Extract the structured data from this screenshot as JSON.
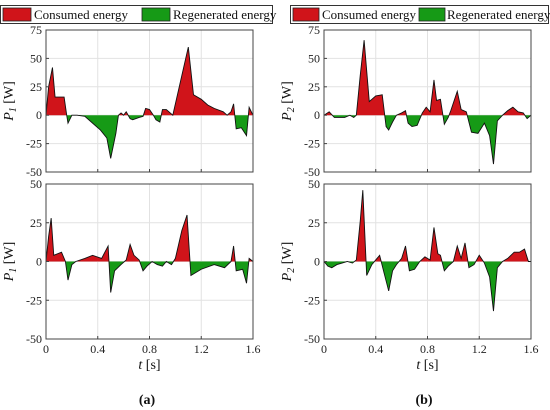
{
  "colors": {
    "consumed": "#d0141a",
    "regenerated": "#169a16",
    "grid": "#e2e2e2",
    "frame": "#444444"
  },
  "legend": {
    "consumed": "Consumed energy",
    "regenerated": "Regenerated energy"
  },
  "panel_labels": {
    "a": "(a)",
    "b": "(b)"
  },
  "chart_data": [
    {
      "type": "area",
      "ylabel_symbol": "P",
      "ylabel_sub": "1",
      "ylabel_unit": "[W]",
      "xlabel": "",
      "xlim": [
        0,
        1.6
      ],
      "ylim": [
        -50,
        75
      ],
      "grid": true,
      "legend": "top",
      "yticks": [
        -50,
        -25,
        0,
        25,
        50,
        75
      ],
      "xticks": [
        0,
        0.4,
        0.8,
        1.2,
        1.6
      ],
      "xtick_labels": [
        "",
        "",
        "",
        "",
        ""
      ],
      "series": [
        {
          "points": [
            [
              0,
              0
            ],
            [
              0.02,
              25
            ],
            [
              0.05,
              42
            ],
            [
              0.07,
              16
            ],
            [
              0.14,
              16
            ],
            [
              0.16,
              0
            ],
            [
              0.17,
              -7
            ],
            [
              0.2,
              0
            ],
            [
              0.24,
              0
            ],
            [
              0.3,
              -1
            ],
            [
              0.36,
              -7
            ],
            [
              0.42,
              -13
            ],
            [
              0.47,
              -20
            ],
            [
              0.5,
              -38
            ],
            [
              0.54,
              -16
            ],
            [
              0.56,
              0
            ],
            [
              0.58,
              2
            ],
            [
              0.6,
              0
            ],
            [
              0.62,
              3
            ],
            [
              0.65,
              -3
            ],
            [
              0.67,
              -4
            ],
            [
              0.72,
              -2
            ],
            [
              0.75,
              -1
            ],
            [
              0.77,
              6
            ],
            [
              0.8,
              5
            ],
            [
              0.83,
              0
            ],
            [
              0.85,
              -4
            ],
            [
              0.88,
              -6
            ],
            [
              0.9,
              5
            ],
            [
              0.93,
              5
            ],
            [
              0.98,
              0
            ],
            [
              1.05,
              35
            ],
            [
              1.1,
              60
            ],
            [
              1.14,
              18
            ],
            [
              1.2,
              14
            ],
            [
              1.25,
              9
            ],
            [
              1.3,
              6
            ],
            [
              1.37,
              3
            ],
            [
              1.4,
              0
            ],
            [
              1.43,
              3
            ],
            [
              1.45,
              10
            ],
            [
              1.47,
              -12
            ],
            [
              1.51,
              -11
            ],
            [
              1.55,
              -18
            ],
            [
              1.57,
              7
            ],
            [
              1.6,
              0
            ]
          ]
        }
      ]
    },
    {
      "type": "area",
      "ylabel_symbol": "P",
      "ylabel_sub": "2",
      "ylabel_unit": "[W]",
      "xlabel": "",
      "xlim": [
        0,
        1.6
      ],
      "ylim": [
        -50,
        75
      ],
      "grid": true,
      "legend": "top",
      "yticks": [
        -50,
        -25,
        0,
        25,
        50,
        75
      ],
      "xticks": [
        0,
        0.4,
        0.8,
        1.2,
        1.6
      ],
      "xtick_labels": [
        "",
        "",
        "",
        "",
        ""
      ],
      "series": [
        {
          "points": [
            [
              0,
              0
            ],
            [
              0.04,
              3
            ],
            [
              0.08,
              -2
            ],
            [
              0.12,
              -2
            ],
            [
              0.16,
              -2
            ],
            [
              0.2,
              0
            ],
            [
              0.23,
              -2
            ],
            [
              0.25,
              0
            ],
            [
              0.28,
              35
            ],
            [
              0.31,
              66
            ],
            [
              0.35,
              12
            ],
            [
              0.4,
              17
            ],
            [
              0.45,
              18
            ],
            [
              0.48,
              -10
            ],
            [
              0.5,
              -13
            ],
            [
              0.53,
              -6
            ],
            [
              0.56,
              0
            ],
            [
              0.6,
              2
            ],
            [
              0.63,
              4
            ],
            [
              0.65,
              -7
            ],
            [
              0.68,
              -10
            ],
            [
              0.72,
              -9
            ],
            [
              0.76,
              2
            ],
            [
              0.79,
              7
            ],
            [
              0.82,
              3
            ],
            [
              0.85,
              31
            ],
            [
              0.87,
              13
            ],
            [
              0.9,
              14
            ],
            [
              0.93,
              -8
            ],
            [
              0.96,
              -2
            ],
            [
              0.98,
              4
            ],
            [
              1.03,
              21
            ],
            [
              1.06,
              5
            ],
            [
              1.1,
              3
            ],
            [
              1.14,
              -15
            ],
            [
              1.19,
              -16
            ],
            [
              1.24,
              -7
            ],
            [
              1.28,
              -18
            ],
            [
              1.31,
              -43
            ],
            [
              1.34,
              -5
            ],
            [
              1.38,
              0
            ],
            [
              1.42,
              4
            ],
            [
              1.46,
              7
            ],
            [
              1.5,
              3
            ],
            [
              1.54,
              2
            ],
            [
              1.57,
              -3
            ],
            [
              1.6,
              0
            ]
          ]
        }
      ]
    },
    {
      "type": "area",
      "ylabel_symbol": "P",
      "ylabel_sub": "1",
      "ylabel_unit": "[W]",
      "xlabel": "t [s]",
      "xlim": [
        0,
        1.6
      ],
      "ylim": [
        -50,
        50
      ],
      "grid": true,
      "yticks": [
        -50,
        -25,
        0,
        25,
        50
      ],
      "xticks": [
        0,
        0.4,
        0.8,
        1.2,
        1.6
      ],
      "xtick_labels": [
        "0",
        "0.4",
        "0.8",
        "1.2",
        "1.6"
      ],
      "series": [
        {
          "points": [
            [
              0,
              0
            ],
            [
              0.02,
              16
            ],
            [
              0.04,
              28
            ],
            [
              0.06,
              4
            ],
            [
              0.12,
              6
            ],
            [
              0.15,
              0
            ],
            [
              0.17,
              -12
            ],
            [
              0.2,
              -2
            ],
            [
              0.23,
              0
            ],
            [
              0.3,
              2
            ],
            [
              0.36,
              4
            ],
            [
              0.43,
              2
            ],
            [
              0.48,
              10
            ],
            [
              0.5,
              -20
            ],
            [
              0.53,
              -6
            ],
            [
              0.58,
              -2
            ],
            [
              0.62,
              1
            ],
            [
              0.65,
              11
            ],
            [
              0.68,
              4
            ],
            [
              0.72,
              1
            ],
            [
              0.75,
              -6
            ],
            [
              0.78,
              -3
            ],
            [
              0.82,
              0
            ],
            [
              0.86,
              -2
            ],
            [
              0.9,
              -3
            ],
            [
              0.93,
              0
            ],
            [
              0.97,
              -2
            ],
            [
              1.0,
              2
            ],
            [
              1.05,
              20
            ],
            [
              1.09,
              30
            ],
            [
              1.12,
              -9
            ],
            [
              1.2,
              -5
            ],
            [
              1.3,
              -2
            ],
            [
              1.38,
              -4
            ],
            [
              1.43,
              0
            ],
            [
              1.45,
              10
            ],
            [
              1.47,
              -6
            ],
            [
              1.52,
              -5
            ],
            [
              1.55,
              -14
            ],
            [
              1.57,
              2
            ],
            [
              1.6,
              0
            ]
          ]
        }
      ]
    },
    {
      "type": "area",
      "ylabel_symbol": "P",
      "ylabel_sub": "2",
      "ylabel_unit": "[W]",
      "xlabel": "t [s]",
      "xlim": [
        0,
        1.6
      ],
      "ylim": [
        -50,
        50
      ],
      "grid": true,
      "yticks": [
        -50,
        -25,
        0,
        25,
        50
      ],
      "xticks": [
        0,
        0.4,
        0.8,
        1.2,
        1.6
      ],
      "xtick_labels": [
        "0",
        "0.4",
        "0.8",
        "1.2",
        "1.6"
      ],
      "series": [
        {
          "points": [
            [
              0,
              0
            ],
            [
              0.03,
              -3
            ],
            [
              0.06,
              -4
            ],
            [
              0.1,
              -2
            ],
            [
              0.14,
              -1
            ],
            [
              0.18,
              0
            ],
            [
              0.22,
              -1
            ],
            [
              0.25,
              1
            ],
            [
              0.28,
              26
            ],
            [
              0.3,
              46
            ],
            [
              0.33,
              -9
            ],
            [
              0.37,
              -2
            ],
            [
              0.4,
              1
            ],
            [
              0.43,
              4
            ],
            [
              0.46,
              -6
            ],
            [
              0.5,
              -19
            ],
            [
              0.53,
              -6
            ],
            [
              0.56,
              -2
            ],
            [
              0.6,
              2
            ],
            [
              0.63,
              10
            ],
            [
              0.66,
              -6
            ],
            [
              0.7,
              -5
            ],
            [
              0.74,
              0
            ],
            [
              0.78,
              3
            ],
            [
              0.82,
              1
            ],
            [
              0.85,
              22
            ],
            [
              0.88,
              5
            ],
            [
              0.9,
              4
            ],
            [
              0.93,
              -6
            ],
            [
              0.96,
              -3
            ],
            [
              1.0,
              0
            ],
            [
              1.03,
              10
            ],
            [
              1.06,
              2
            ],
            [
              1.09,
              12
            ],
            [
              1.12,
              -4
            ],
            [
              1.16,
              -2
            ],
            [
              1.2,
              4
            ],
            [
              1.24,
              -1
            ],
            [
              1.28,
              -10
            ],
            [
              1.31,
              -32
            ],
            [
              1.34,
              -4
            ],
            [
              1.38,
              0
            ],
            [
              1.42,
              2
            ],
            [
              1.47,
              6
            ],
            [
              1.51,
              6
            ],
            [
              1.55,
              8
            ],
            [
              1.58,
              0
            ],
            [
              1.6,
              0
            ]
          ]
        }
      ]
    }
  ]
}
